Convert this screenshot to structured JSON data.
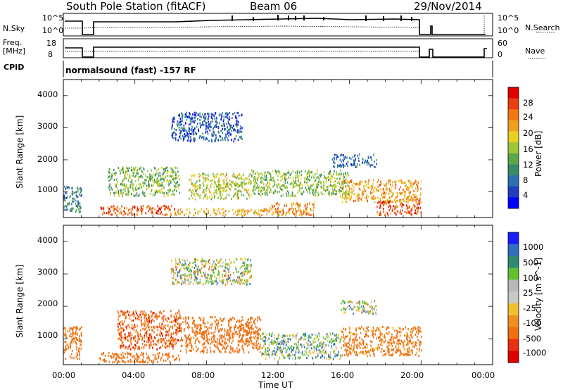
{
  "header": {
    "station": "South Pole Station (fitACF)",
    "beam": "Beam 06",
    "date": "29/Nov/2014"
  },
  "top_panels": {
    "nsky_label": "N.Sky",
    "nsky_ticks": [
      "10^5",
      "10^0"
    ],
    "nsearch_label": "N.Search",
    "nsearch_ticks": [
      "10^5",
      "10^0"
    ],
    "freq_label_1": "Freq.",
    "freq_label_2": "[MHz]",
    "freq_ticks": [
      "18",
      "8"
    ],
    "nave_label": "Nave",
    "nave_ticks": [
      "60",
      "0"
    ],
    "cpid_label": "CPID",
    "cpid_text": "normalsound (fast) -157 RF"
  },
  "colors": {
    "power_scale": [
      "#0000ff",
      "#1f3fbf",
      "#2e6fb0",
      "#3a8a6a",
      "#5aa84a",
      "#9cc83a",
      "#e8d020",
      "#f0a020",
      "#f07810",
      "#e84010",
      "#e00000"
    ],
    "velocity_scale": [
      "#1a1aff",
      "#2e6fc0",
      "#2e8a70",
      "#60c030",
      "#b8b8b8",
      "#c8c8c8",
      "#f0c030",
      "#f09020",
      "#f07010",
      "#e83010",
      "#e00000"
    ]
  },
  "chart_data": [
    {
      "type": "heatmap",
      "title": "",
      "ylabel": "Slant Range [km]",
      "xlabel": "",
      "ylim": [
        200,
        4500
      ],
      "xlim": [
        0,
        24
      ],
      "y_ticks": [
        "1000",
        "2000",
        "3000",
        "4000"
      ],
      "colorbar": {
        "label": "Power [dB]",
        "ticks": [
          "4",
          "8",
          "12",
          "16",
          "20",
          "24",
          "28"
        ],
        "range": [
          0,
          32
        ]
      },
      "series": [
        {
          "t0": 2.0,
          "t1": 6.2,
          "r0": 300,
          "r1": 600,
          "value": 26
        },
        {
          "t0": 6.2,
          "t1": 11.5,
          "r0": 300,
          "r1": 500,
          "value": 21
        },
        {
          "t0": 11.5,
          "t1": 14.0,
          "r0": 300,
          "r1": 700,
          "value": 23
        },
        {
          "t0": 17.5,
          "t1": 20.0,
          "r0": 300,
          "r1": 800,
          "value": 27
        },
        {
          "t0": 2.5,
          "t1": 6.5,
          "r0": 900,
          "r1": 1800,
          "value": 14
        },
        {
          "t0": 7.0,
          "t1": 10.5,
          "r0": 800,
          "r1": 1600,
          "value": 17
        },
        {
          "t0": 10.5,
          "t1": 16.0,
          "r0": 900,
          "r1": 1700,
          "value": 15
        },
        {
          "t0": 15.5,
          "t1": 20.0,
          "r0": 700,
          "r1": 1400,
          "value": 22
        },
        {
          "t0": 6.0,
          "t1": 10.0,
          "r0": 2600,
          "r1": 3500,
          "value": 6
        },
        {
          "t0": 15.0,
          "t1": 17.5,
          "r0": 1800,
          "r1": 2200,
          "value": 7
        },
        {
          "t0": 0.0,
          "t1": 1.0,
          "r0": 400,
          "r1": 1200,
          "value": 9
        }
      ]
    },
    {
      "type": "heatmap",
      "title": "",
      "ylabel": "Slant Range [km]",
      "xlabel": "Time UT",
      "ylim": [
        200,
        4500
      ],
      "xlim": [
        0,
        24
      ],
      "x_ticks": [
        "00:00",
        "04:00",
        "08:00",
        "12:00",
        "16:00",
        "20:00",
        "00:00"
      ],
      "y_ticks": [
        "1000",
        "2000",
        "3000",
        "4000"
      ],
      "colorbar": {
        "label": "Velocity [m s^-1]",
        "ticks": [
          "1000",
          "500",
          "100",
          "25",
          "-25",
          "-100",
          "-500",
          "-1000"
        ]
      },
      "series": [
        {
          "t0": 2.0,
          "t1": 6.5,
          "r0": 300,
          "r1": 600,
          "value": -300
        },
        {
          "t0": 3.0,
          "t1": 6.5,
          "r0": 700,
          "r1": 1900,
          "value": -400
        },
        {
          "t0": 6.5,
          "t1": 11.0,
          "r0": 600,
          "r1": 1700,
          "value": -300
        },
        {
          "t0": 11.0,
          "t1": 15.5,
          "r0": 400,
          "r1": 1200,
          "value": 50
        },
        {
          "t0": 15.5,
          "t1": 20.0,
          "r0": 500,
          "r1": 1400,
          "value": -200
        },
        {
          "t0": 6.0,
          "t1": 10.5,
          "r0": 2700,
          "r1": 3500,
          "value": 0
        },
        {
          "t0": 15.5,
          "t1": 17.5,
          "r0": 1800,
          "r1": 2200,
          "value": 10
        },
        {
          "t0": 0.0,
          "t1": 1.0,
          "r0": 400,
          "r1": 1400,
          "value": -350
        }
      ]
    }
  ]
}
